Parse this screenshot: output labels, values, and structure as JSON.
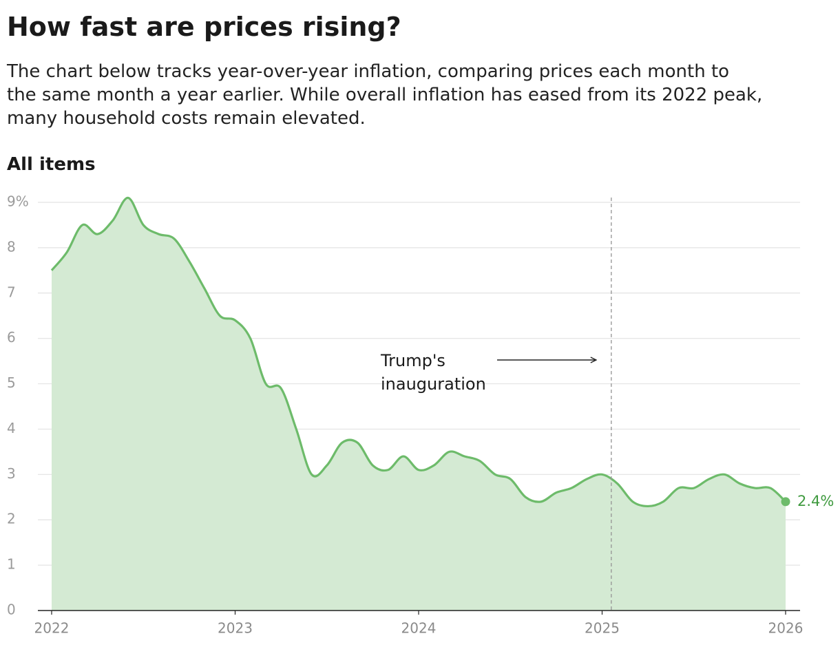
{
  "chart_data": {
    "type": "area",
    "title": "How fast are prices rising?",
    "subtitle_lines": [
      "The chart below tracks year-over-year inflation, comparing prices each month to",
      "the same month a year earlier. While overall inflation has eased from its 2022 peak,",
      "many household costs remain elevated."
    ],
    "series_label": "All items",
    "x": [
      2022,
      2022.083,
      2022.167,
      2022.25,
      2022.333,
      2022.417,
      2022.5,
      2022.583,
      2022.667,
      2022.75,
      2022.833,
      2022.917,
      2023,
      2023.083,
      2023.167,
      2023.25,
      2023.333,
      2023.417,
      2023.5,
      2023.583,
      2023.667,
      2023.75,
      2023.833,
      2023.917,
      2024,
      2024.083,
      2024.167,
      2024.25,
      2024.333,
      2024.417,
      2024.5,
      2024.583,
      2024.667,
      2024.75,
      2024.833,
      2024.917,
      2025,
      2025.083,
      2025.167,
      2025.25,
      2025.333,
      2025.417,
      2025.5,
      2025.583,
      2025.667,
      2025.75,
      2025.833,
      2025.917,
      2026
    ],
    "values": [
      7.5,
      7.9,
      8.5,
      8.3,
      8.6,
      9.1,
      8.5,
      8.3,
      8.2,
      7.7,
      7.1,
      6.5,
      6.4,
      6.0,
      5.0,
      4.9,
      4.0,
      3.0,
      3.2,
      3.7,
      3.7,
      3.2,
      3.1,
      3.4,
      3.1,
      3.2,
      3.5,
      3.4,
      3.3,
      3.0,
      2.9,
      2.5,
      2.4,
      2.6,
      2.7,
      2.9,
      3.0,
      2.8,
      2.4,
      2.3,
      2.4,
      2.7,
      2.7,
      2.9,
      3.0,
      2.8,
      2.7,
      2.7,
      2.4
    ],
    "value_labels": [
      null,
      null,
      null,
      null,
      null,
      null,
      null,
      null,
      null,
      null,
      null,
      null,
      null,
      null,
      null,
      null,
      null,
      null,
      null,
      null,
      null,
      null,
      null,
      null,
      null,
      null,
      null,
      null,
      null,
      null,
      null,
      null,
      null,
      null,
      null,
      null,
      null,
      null,
      null,
      null,
      null,
      null,
      null,
      null,
      null,
      null,
      null,
      null,
      "2.4%"
    ],
    "color": "#6dbb6a",
    "fill_color": "#d4ead3",
    "xlim": [
      2022,
      2026
    ],
    "xticks": [
      2022,
      2023,
      2024,
      2025,
      2026
    ],
    "ylim": [
      0,
      9
    ],
    "yticks": [
      0,
      1,
      2,
      3,
      4,
      5,
      6,
      7,
      8,
      {
        "value": 9,
        "label": "9%"
      }
    ],
    "grid": true,
    "annotation": {
      "x": 2025.05,
      "lines": [
        "Trump's",
        "inauguration"
      ]
    }
  }
}
